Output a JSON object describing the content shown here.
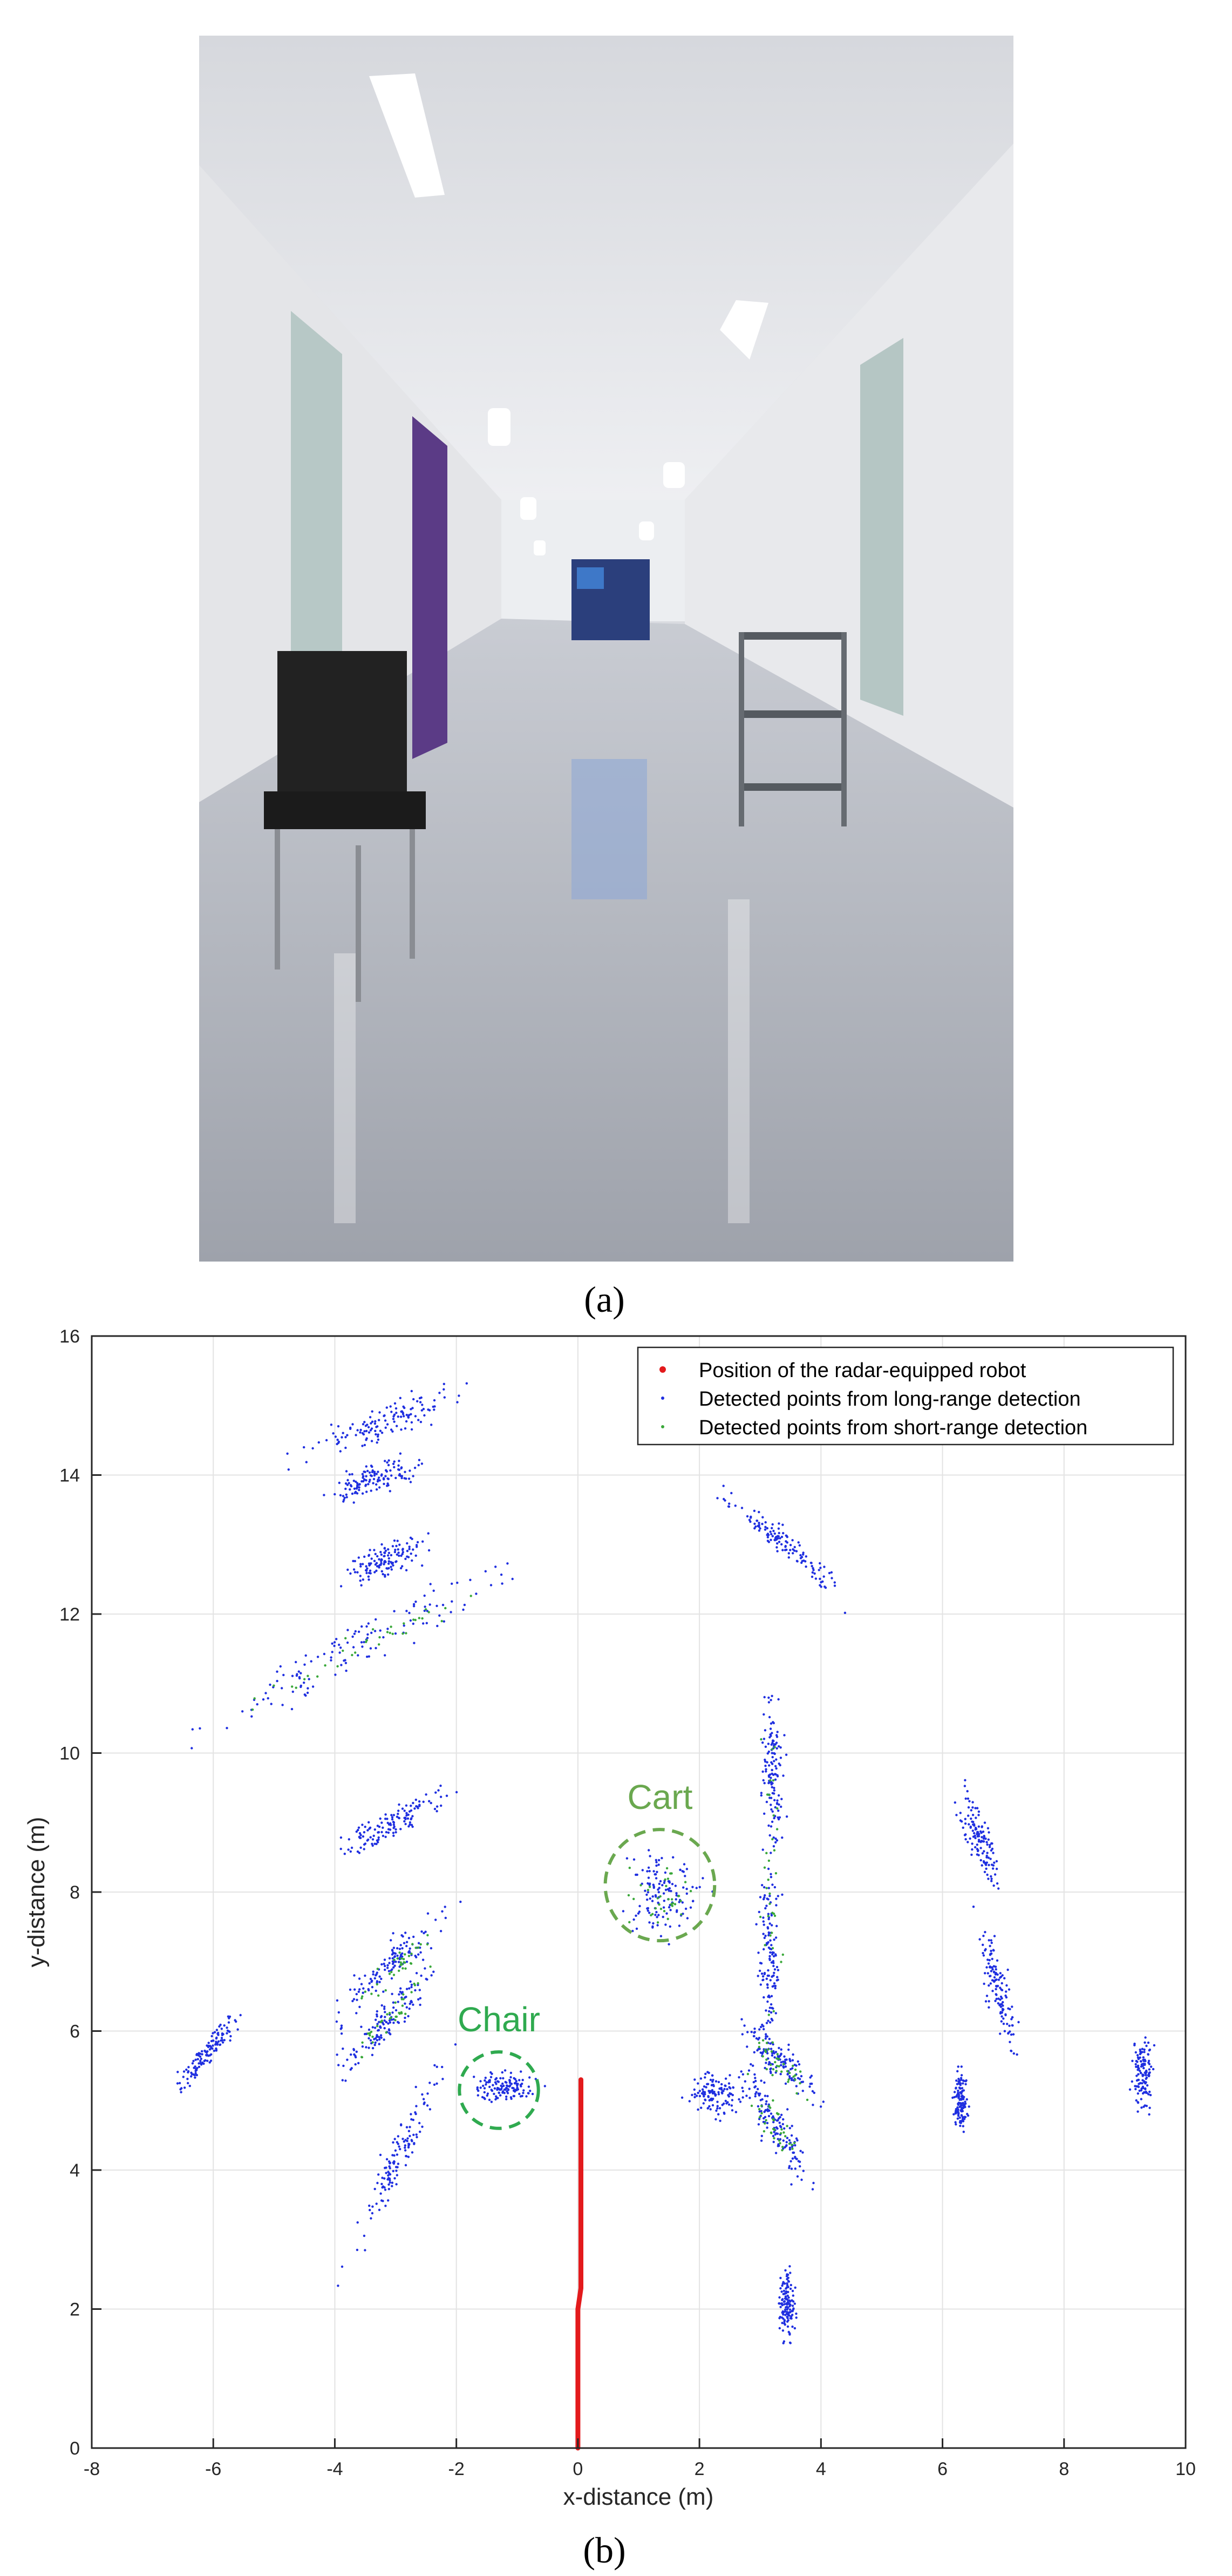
{
  "figure": {
    "caption_a": "(a)",
    "caption_b": "(b)"
  },
  "photo": {
    "description_icon": "hallway-photo"
  },
  "colors": {
    "robot": "#e31a1c",
    "long_range": "#1f2fe0",
    "short_range": "#3aa83a",
    "annotation_cart": "#6aa84f",
    "annotation_chair": "#2faa4f"
  },
  "chart_data": {
    "type": "scatter",
    "xlabel": "x-distance (m)",
    "ylabel": "y-distance (m)",
    "xlim": [
      -8,
      10
    ],
    "ylim": [
      0,
      16
    ],
    "xticks": [
      -8,
      -6,
      -4,
      -2,
      0,
      2,
      4,
      6,
      8,
      10
    ],
    "yticks": [
      0,
      2,
      4,
      6,
      8,
      10,
      12,
      14,
      16
    ],
    "grid": true,
    "legend_position": "top-right",
    "legend": [
      "Position of the radar-equipped robot",
      "Detected points from long-range detection",
      "Detected points from short-range detection"
    ],
    "annotations": [
      {
        "label": "Cart",
        "center": [
          1.35,
          8.1
        ],
        "radius": [
          0.9,
          0.8
        ]
      },
      {
        "label": "Chair",
        "center": [
          -1.3,
          5.15
        ],
        "radius": [
          0.65,
          0.55
        ]
      }
    ],
    "series": [
      {
        "name": "Position of the radar-equipped robot",
        "path": [
          [
            0.0,
            0.0
          ],
          [
            0.0,
            2.0
          ],
          [
            0.05,
            2.3
          ],
          [
            0.05,
            5.3
          ]
        ]
      },
      {
        "name": "Detected points from long-range detection",
        "clusters": [
          {
            "cx": -3.2,
            "cy": 14.75,
            "sx": 0.6,
            "sy": 0.12,
            "slope": 0.35
          },
          {
            "cx": -3.3,
            "cy": 13.95,
            "sx": 0.35,
            "sy": 0.1,
            "slope": 0.3
          },
          {
            "cx": -3.2,
            "cy": 12.75,
            "sx": 0.3,
            "sy": 0.12,
            "slope": 0.3
          },
          {
            "cx": -3.6,
            "cy": 11.55,
            "sx": 1.1,
            "sy": 0.18,
            "slope": 0.45
          },
          {
            "cx": -3.0,
            "cy": 9.0,
            "sx": 0.45,
            "sy": 0.12,
            "slope": 0.45
          },
          {
            "cx": -3.1,
            "cy": 6.95,
            "sx": 0.45,
            "sy": 0.14,
            "slope": 0.8
          },
          {
            "cx": -3.1,
            "cy": 6.2,
            "sx": 0.35,
            "sy": 0.14,
            "slope": 0.9
          },
          {
            "cx": -3.0,
            "cy": 4.1,
            "sx": 0.35,
            "sy": 0.2,
            "slope": 1.8
          },
          {
            "cx": -6.1,
            "cy": 5.7,
            "sx": 0.25,
            "sy": 0.1,
            "slope": 1.0
          },
          {
            "cx": 1.4,
            "cy": 8.0,
            "sx": 0.3,
            "sy": 0.3,
            "slope": 0.0
          },
          {
            "cx": -1.2,
            "cy": 5.2,
            "sx": 0.25,
            "sy": 0.1,
            "slope": 0.0
          },
          {
            "cx": 3.35,
            "cy": 13.05,
            "sx": 0.45,
            "sy": 0.1,
            "slope": -0.7
          },
          {
            "cx": 3.2,
            "cy": 9.7,
            "sx": 0.08,
            "sy": 0.5,
            "slope": 0.0
          },
          {
            "cx": 3.15,
            "cy": 7.2,
            "sx": 0.08,
            "sy": 0.6,
            "slope": 0.0
          },
          {
            "cx": 3.3,
            "cy": 5.6,
            "sx": 0.3,
            "sy": 0.15,
            "slope": -0.8
          },
          {
            "cx": 3.3,
            "cy": 4.6,
            "sx": 0.25,
            "sy": 0.2,
            "slope": -1.2
          },
          {
            "cx": 3.45,
            "cy": 2.1,
            "sx": 0.06,
            "sy": 0.25,
            "slope": 0.0
          },
          {
            "cx": 6.9,
            "cy": 6.6,
            "sx": 0.15,
            "sy": 0.25,
            "slope": -2.0
          },
          {
            "cx": 6.6,
            "cy": 8.8,
            "sx": 0.15,
            "sy": 0.2,
            "slope": -1.5
          },
          {
            "cx": 9.3,
            "cy": 5.4,
            "sx": 0.08,
            "sy": 0.25,
            "slope": 0.0
          },
          {
            "cx": 6.3,
            "cy": 5.0,
            "sx": 0.05,
            "sy": 0.2,
            "slope": 0.0
          },
          {
            "cx": 2.3,
            "cy": 5.1,
            "sx": 0.25,
            "sy": 0.15,
            "slope": 0.0
          }
        ]
      },
      {
        "name": "Detected points from short-range detection",
        "clusters": [
          {
            "cx": -3.6,
            "cy": 11.5,
            "sx": 0.8,
            "sy": 0.1,
            "slope": 0.45
          },
          {
            "cx": -3.0,
            "cy": 6.9,
            "sx": 0.35,
            "sy": 0.1,
            "slope": 0.8
          },
          {
            "cx": -3.1,
            "cy": 6.2,
            "sx": 0.25,
            "sy": 0.1,
            "slope": 0.9
          },
          {
            "cx": 1.4,
            "cy": 7.9,
            "sx": 0.25,
            "sy": 0.2,
            "slope": 0.0
          },
          {
            "cx": 3.2,
            "cy": 8.3,
            "sx": 0.1,
            "sy": 1.2,
            "slope": 0.0
          },
          {
            "cx": 3.3,
            "cy": 5.5,
            "sx": 0.2,
            "sy": 0.1,
            "slope": -0.8
          },
          {
            "cx": 3.3,
            "cy": 4.6,
            "sx": 0.2,
            "sy": 0.15,
            "slope": -1.2
          }
        ]
      }
    ]
  }
}
